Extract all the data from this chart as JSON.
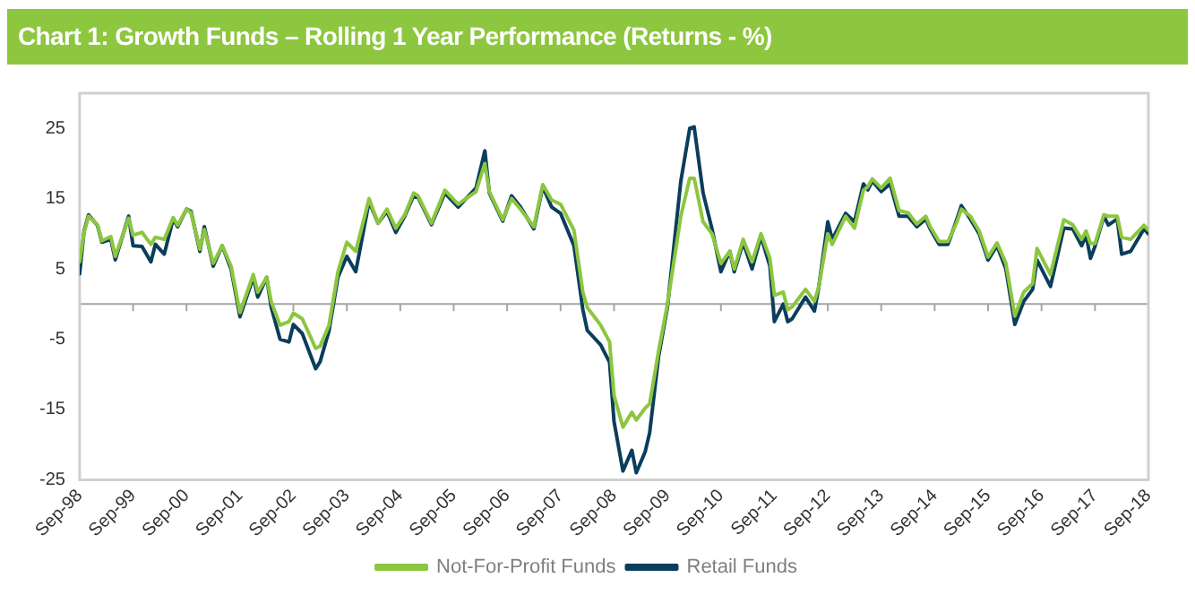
{
  "chart_data": {
    "type": "line",
    "title": "Chart 1:  Growth Funds – Rolling 1 Year Performance (Returns - %)",
    "x": [
      "1998-09",
      "1998-10",
      "1998-11",
      "1999-01",
      "1999-02",
      "1999-04",
      "1999-05",
      "1999-08",
      "1999-09",
      "1999-11",
      "2000-01",
      "2000-02",
      "2000-04",
      "2000-06",
      "2000-07",
      "2000-09",
      "2000-10",
      "2000-12",
      "2001-01",
      "2001-03",
      "2001-05",
      "2001-07",
      "2001-09",
      "2001-12",
      "2002-01",
      "2002-03",
      "2002-04",
      "2002-06",
      "2002-08",
      "2002-09",
      "2002-11",
      "2003-02",
      "2003-03",
      "2003-05",
      "2003-07",
      "2003-09",
      "2003-11",
      "2004-02",
      "2004-04",
      "2004-06",
      "2004-08",
      "2004-10",
      "2004-12",
      "2005-01",
      "2005-04",
      "2005-07",
      "2005-10",
      "2006-02",
      "2006-04",
      "2006-05",
      "2006-08",
      "2006-10",
      "2006-12",
      "2007-03",
      "2007-05",
      "2007-07",
      "2007-09",
      "2007-12",
      "2008-02",
      "2008-03",
      "2008-06",
      "2008-08",
      "2008-09",
      "2008-11",
      "2009-01",
      "2009-02",
      "2009-04",
      "2009-05",
      "2009-07",
      "2009-09",
      "2009-12",
      "2010-02",
      "2010-03",
      "2010-05",
      "2010-07",
      "2010-09",
      "2010-11",
      "2010-12",
      "2011-02",
      "2011-04",
      "2011-06",
      "2011-08",
      "2011-09",
      "2011-11",
      "2011-12",
      "2012-01",
      "2012-04",
      "2012-06",
      "2012-07",
      "2012-09",
      "2012-10",
      "2013-01",
      "2013-03",
      "2013-05",
      "2013-06",
      "2013-07",
      "2013-09",
      "2013-11",
      "2014-01",
      "2014-03",
      "2014-05",
      "2014-07",
      "2014-08",
      "2014-10",
      "2014-12",
      "2015-02",
      "2015-03",
      "2015-05",
      "2015-07",
      "2015-09",
      "2015-11",
      "2016-01",
      "2016-03",
      "2016-05",
      "2016-07",
      "2016-08",
      "2016-11",
      "2017-02",
      "2017-04",
      "2017-06",
      "2017-07",
      "2017-08",
      "2017-09",
      "2017-11",
      "2017-12",
      "2018-02",
      "2018-03",
      "2018-05",
      "2018-08",
      "2018-09"
    ],
    "series": [
      {
        "name": "Not-For-Profit Funds",
        "color": "#8cc63f",
        "values": [
          6,
          10.2,
          12.5,
          11.3,
          9,
          9.6,
          6.8,
          12.2,
          9.8,
          10.2,
          8.5,
          9.5,
          9.2,
          12.3,
          11.2,
          13.5,
          13,
          7.8,
          10.6,
          5.8,
          8.3,
          5.4,
          -1.2,
          4.2,
          1.7,
          3.8,
          0.4,
          -3,
          -2.5,
          -1.3,
          -2.1,
          -6.3,
          -6,
          -3,
          4.6,
          8.8,
          7.5,
          15,
          11.5,
          13.5,
          10.8,
          12.7,
          15.8,
          15.4,
          11.5,
          16.2,
          14.2,
          16,
          20,
          16,
          12,
          15,
          13.5,
          11,
          17,
          14.8,
          14.2,
          10.5,
          1.7,
          -0.5,
          -3,
          -5.4,
          -13,
          -17.5,
          -15.4,
          -16.5,
          -14.8,
          -14.2,
          -6.7,
          0,
          12.5,
          17.9,
          17.9,
          11.7,
          10,
          5.8,
          7.5,
          5,
          9.2,
          6,
          10,
          6.5,
          1.25,
          1.7,
          -0.8,
          -0.4,
          2.1,
          0.4,
          2.5,
          10,
          8.5,
          12.5,
          10.8,
          16.2,
          16.7,
          17.8,
          16.5,
          17.9,
          13.3,
          13,
          11.4,
          12.5,
          11,
          8.9,
          8.9,
          11.7,
          13.5,
          12.5,
          10.4,
          6.7,
          8.7,
          5.8,
          -1.7,
          1.7,
          2.9,
          7.9,
          4.2,
          12,
          11.3,
          9.2,
          10.4,
          8.6,
          8.6,
          12.7,
          12.5,
          12.5,
          9.5,
          9.2,
          11.2,
          10.5
        ]
      },
      {
        "name": "Retail Funds",
        "color": "#0b3d5c",
        "values": [
          4.3,
          10.4,
          12.7,
          11.2,
          8.8,
          9.2,
          6.3,
          12.5,
          8.3,
          8.2,
          6,
          8.5,
          7.1,
          12.1,
          11,
          13.5,
          13.2,
          7.5,
          11,
          5.4,
          8.3,
          5,
          -1.8,
          3.8,
          1,
          3.8,
          -0.4,
          -5,
          -5.4,
          -2.9,
          -4.2,
          -9.2,
          -8.2,
          -3.8,
          3.8,
          6.8,
          4.6,
          14.6,
          11.5,
          13.2,
          10.2,
          12.5,
          15.4,
          15.2,
          11.3,
          15.8,
          13.8,
          16.5,
          21.8,
          15.8,
          11.8,
          15.4,
          13.8,
          10.7,
          16.7,
          13.8,
          12.9,
          8.3,
          -0.8,
          -3.75,
          -5.8,
          -8.3,
          -16.7,
          -23.75,
          -20.8,
          -24,
          -21,
          -18.3,
          -7.5,
          -0.4,
          17.5,
          25,
          25.2,
          15.8,
          10.7,
          4.6,
          7.5,
          4.6,
          8.75,
          5,
          9.6,
          5.4,
          -2.5,
          0,
          -2.5,
          -2.1,
          1,
          -1,
          2.5,
          11.7,
          9.2,
          12.9,
          11.7,
          17.1,
          16.25,
          17.5,
          16,
          17.1,
          12.5,
          12.5,
          11,
          12.1,
          10.7,
          8.5,
          8.5,
          12.1,
          14,
          12.1,
          10,
          6.25,
          8.3,
          5,
          -2.9,
          0.4,
          2.1,
          6.25,
          2.5,
          10.8,
          10.7,
          8.3,
          9.8,
          6.5,
          8.2,
          12.5,
          11.25,
          12.1,
          7.1,
          7.5,
          10.7,
          10
        ]
      }
    ],
    "xlim": [
      "1998-09",
      "2018-09"
    ],
    "xticks": [
      {
        "value": "1998-09",
        "label": "Sep-98"
      },
      {
        "value": "1999-09",
        "label": "Sep-99"
      },
      {
        "value": "2000-09",
        "label": "Sep-00"
      },
      {
        "value": "2001-09",
        "label": "Sep-01"
      },
      {
        "value": "2002-09",
        "label": "Sep-02"
      },
      {
        "value": "2003-09",
        "label": "Sep-03"
      },
      {
        "value": "2004-09",
        "label": "Sep-04"
      },
      {
        "value": "2005-09",
        "label": "Sep-05"
      },
      {
        "value": "2006-09",
        "label": "Sep-06"
      },
      {
        "value": "2007-09",
        "label": "Sep-07"
      },
      {
        "value": "2008-09",
        "label": "Sep-08"
      },
      {
        "value": "2009-09",
        "label": "Sep-09"
      },
      {
        "value": "2010-09",
        "label": "Sep-10"
      },
      {
        "value": "2011-09",
        "label": "Sep-11"
      },
      {
        "value": "2012-09",
        "label": "Sep-12"
      },
      {
        "value": "2013-09",
        "label": "Sep-13"
      },
      {
        "value": "2014-09",
        "label": "Sep-14"
      },
      {
        "value": "2015-09",
        "label": "Sep-15"
      },
      {
        "value": "2016-09",
        "label": "Sep-16"
      },
      {
        "value": "2017-09",
        "label": "Sep-17"
      },
      {
        "value": "2018-09",
        "label": "Sep-18"
      }
    ],
    "ylim": [
      -25,
      30
    ],
    "yticks": [
      -25,
      -15,
      -5,
      5,
      15,
      25
    ],
    "ref_lines": [
      {
        "axis": "y",
        "value": 0,
        "color": "#a6a6a6"
      }
    ],
    "grid": false,
    "legend": "bottom",
    "marker": "none",
    "line_style": "solid"
  }
}
